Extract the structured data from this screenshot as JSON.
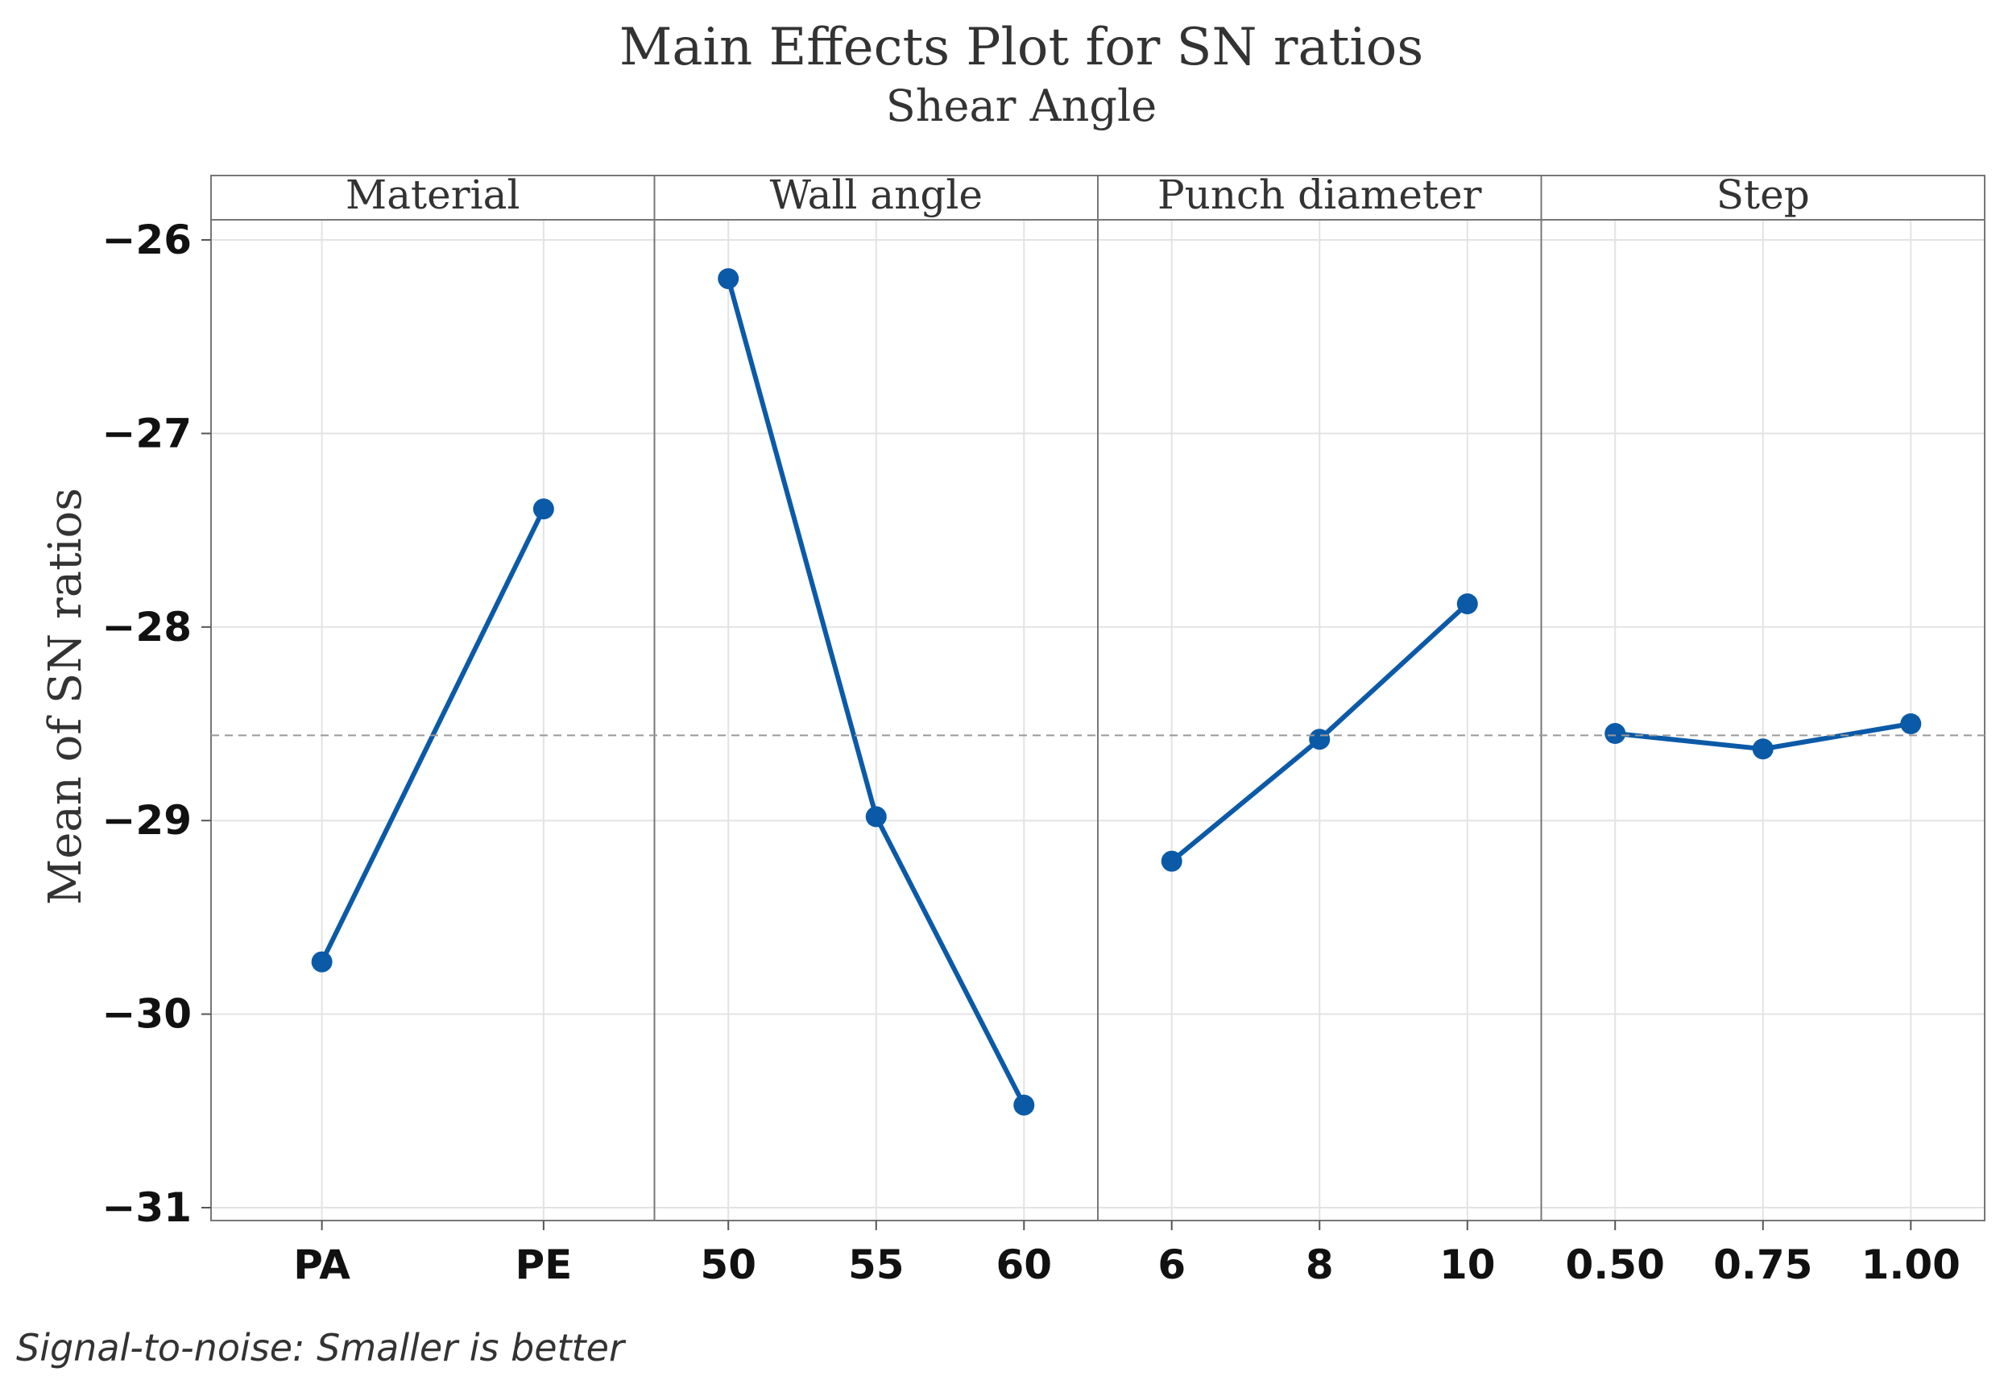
{
  "chart_data": {
    "type": "line",
    "title": "Main Effects Plot for SN ratios",
    "subtitle": "Shear Angle",
    "ylabel": "Mean of SN ratios",
    "ylim": [
      -31,
      -26
    ],
    "yticks": [
      -31,
      -30,
      -29,
      -28,
      -27,
      -26
    ],
    "ytick_labels": [
      "−31",
      "−30",
      "−29",
      "−28",
      "−27",
      "−26"
    ],
    "reference_line": -28.56,
    "grid": true,
    "footnote": "Signal-to-noise: Smaller is better",
    "panels": [
      {
        "name": "Material",
        "categories": [
          "PA",
          "PE"
        ],
        "values": [
          -29.73,
          -27.39
        ]
      },
      {
        "name": "Wall angle",
        "categories": [
          "50",
          "55",
          "60"
        ],
        "values": [
          -26.2,
          -28.98,
          -30.47
        ]
      },
      {
        "name": "Punch diameter",
        "categories": [
          "6",
          "8",
          "10"
        ],
        "values": [
          -29.21,
          -28.58,
          -27.88
        ]
      },
      {
        "name": "Step",
        "categories": [
          "0.50",
          "0.75",
          "1.00"
        ],
        "values": [
          -28.55,
          -28.63,
          -28.5
        ]
      }
    ],
    "line_color": "#0b5aa8"
  }
}
